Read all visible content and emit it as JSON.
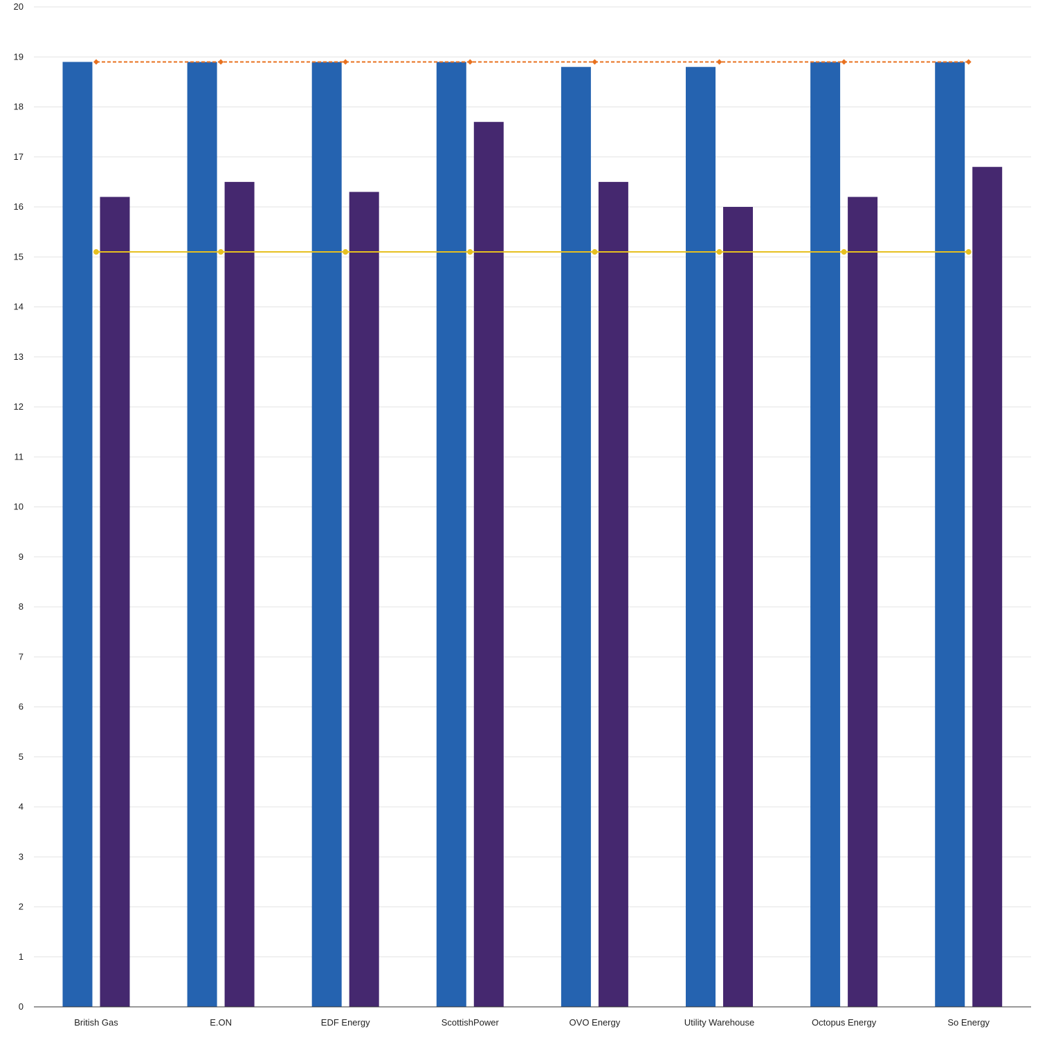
{
  "chart_data": {
    "type": "bar",
    "categories": [
      "British Gas",
      "E.ON",
      "EDF Energy",
      "ScottishPower",
      "OVO Energy",
      "Utility Warehouse",
      "Octopus Energy",
      "So Energy"
    ],
    "series": [
      {
        "type": "bar",
        "color": "#2563b0",
        "values": [
          18.9,
          18.9,
          18.9,
          18.9,
          18.8,
          18.8,
          18.9,
          18.9
        ]
      },
      {
        "type": "bar",
        "color": "#45286f",
        "values": [
          16.2,
          16.5,
          16.3,
          17.7,
          16.5,
          16.0,
          16.2,
          16.8
        ]
      },
      {
        "type": "line",
        "style": "dashed",
        "marker": "diamond",
        "color": "#e8711f",
        "values": [
          18.9,
          18.9,
          18.9,
          18.9,
          18.9,
          18.9,
          18.9,
          18.9
        ]
      },
      {
        "type": "line",
        "style": "solid",
        "marker": "circle",
        "color": "#e6c020",
        "values": [
          15.1,
          15.1,
          15.1,
          15.1,
          15.1,
          15.1,
          15.1,
          15.1
        ]
      }
    ],
    "ylim": [
      0,
      20
    ],
    "yticks": [
      "0",
      "1",
      "2",
      "3",
      "4",
      "5",
      "6",
      "7",
      "8",
      "9",
      "10",
      "11",
      "12",
      "13",
      "14",
      "15",
      "16",
      "17",
      "18",
      "19",
      "20"
    ],
    "grid": true,
    "title": "",
    "xlabel": "",
    "ylabel": ""
  }
}
